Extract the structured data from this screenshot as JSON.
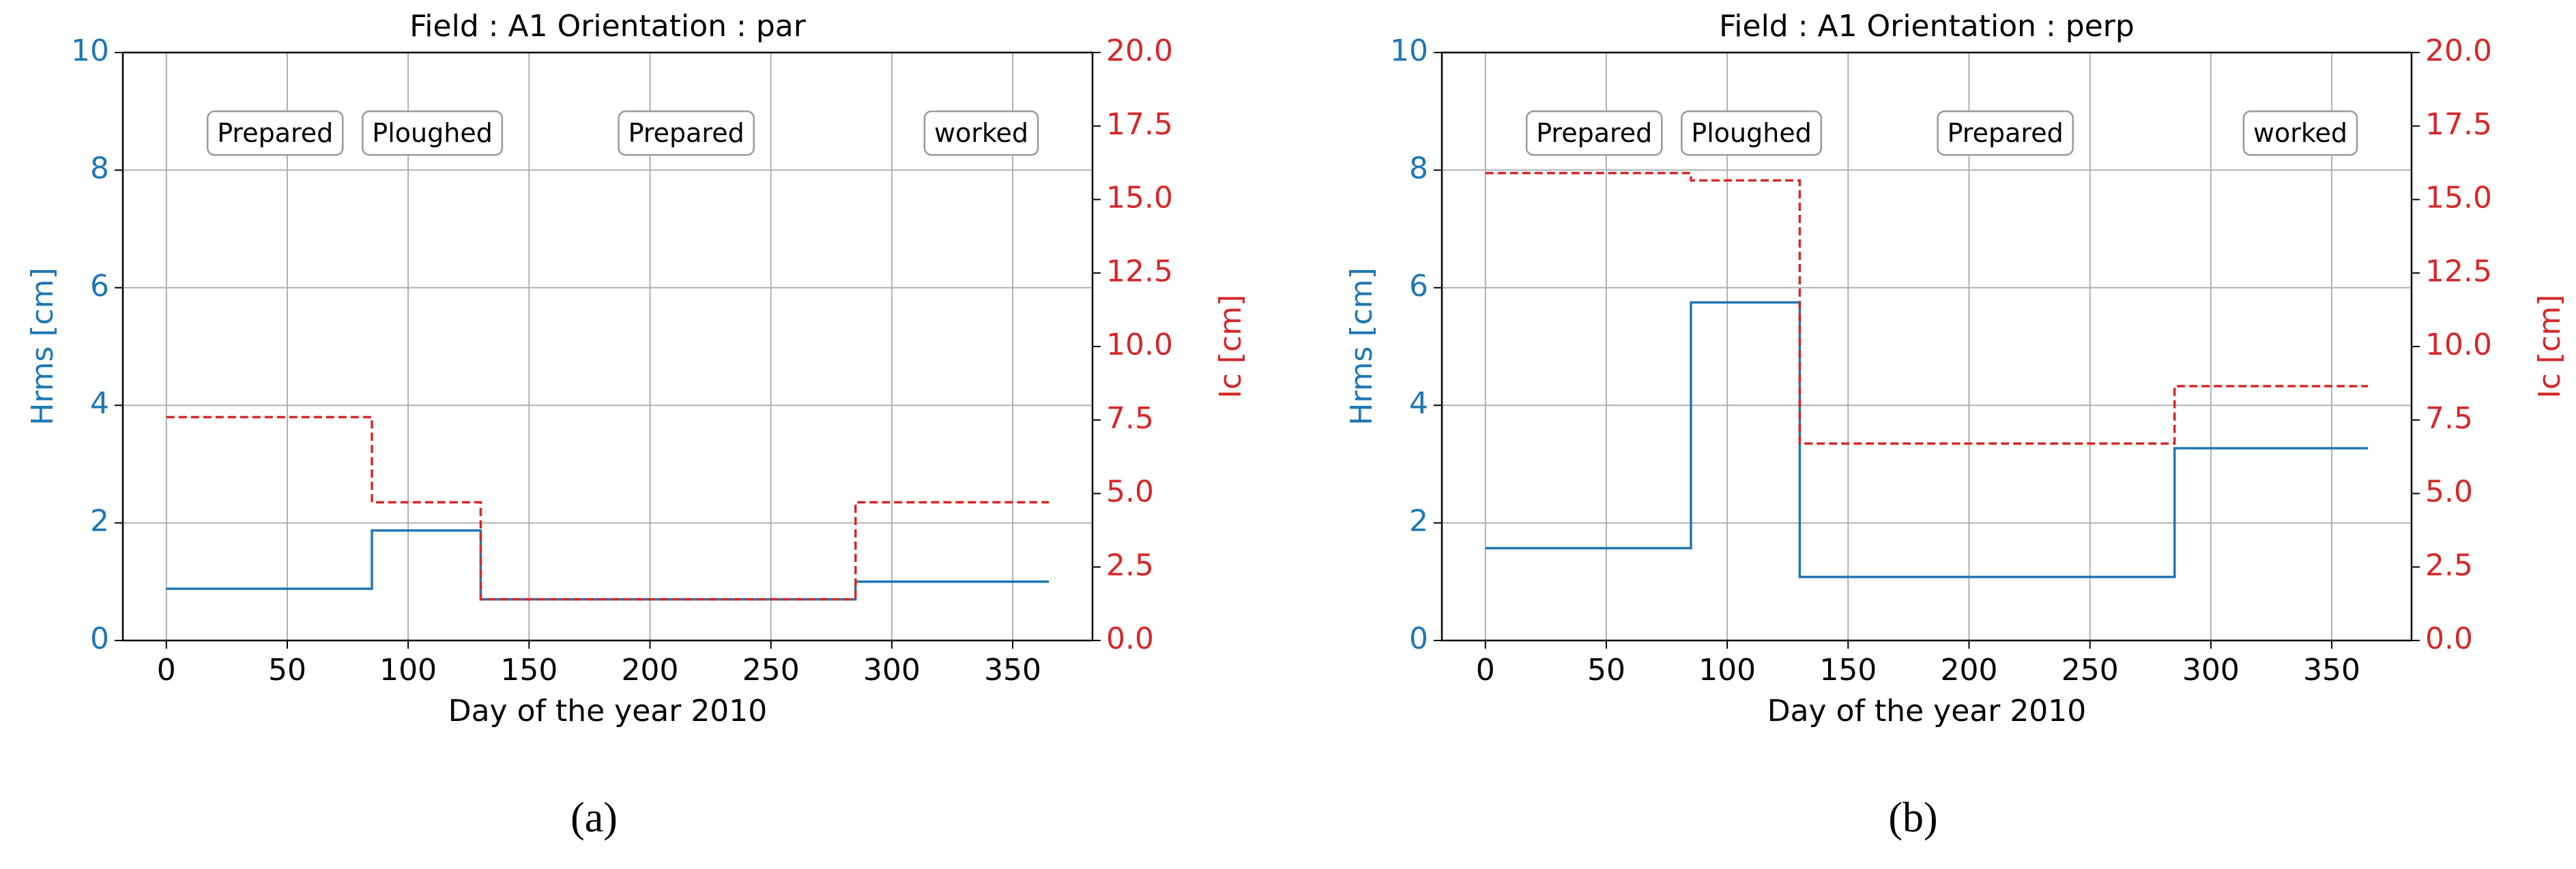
{
  "chart_data": [
    {
      "type": "line",
      "title": "Field : A1 Orientation : par",
      "xlabel": "Day of the year 2010",
      "ylabel": "Hrms [cm]",
      "y2label": "Ic [cm]",
      "caption": "(a)",
      "x": [
        0,
        85,
        85,
        130,
        130,
        285,
        285,
        365
      ],
      "series": [
        {
          "name": "Hrms",
          "color": "#1f77b4",
          "values": [
            0.88,
            0.88,
            1.87,
            1.87,
            0.7,
            0.7,
            1.0,
            1.0
          ]
        },
        {
          "name": "Ic",
          "color": "#d62728",
          "axis": "y2",
          "dashed": true,
          "values": [
            7.6,
            7.6,
            4.7,
            4.7,
            1.4,
            1.4,
            4.7,
            4.7
          ]
        }
      ],
      "annotations": [
        "Prepared",
        "Ploughed",
        "Prepared",
        "worked"
      ],
      "xlim": [
        -18,
        383
      ],
      "xticks": [
        0,
        50,
        100,
        150,
        200,
        250,
        300,
        350
      ],
      "ylim": [
        0,
        10
      ],
      "yticks": [
        0,
        2,
        4,
        6,
        8,
        10
      ],
      "y2lim": [
        0,
        20
      ],
      "y2ticks": [
        {
          "value": 0,
          "label": "0.0"
        },
        {
          "value": 2.5,
          "label": "2.5"
        },
        {
          "value": 5,
          "label": "5.0"
        },
        {
          "value": 7.5,
          "label": "7.5"
        },
        {
          "value": 10,
          "label": "10.0"
        },
        {
          "value": 12.5,
          "label": "12.5"
        },
        {
          "value": 15,
          "label": "15.0"
        },
        {
          "value": 17.5,
          "label": "17.5"
        },
        {
          "value": 20,
          "label": "20.0"
        }
      ],
      "grid": true
    },
    {
      "type": "line",
      "title": "Field : A1 Orientation : perp",
      "xlabel": "Day of the year 2010",
      "ylabel": "Hrms [cm]",
      "y2label": "Ic [cm]",
      "caption": "(b)",
      "x": [
        0,
        85,
        85,
        130,
        130,
        285,
        285,
        365
      ],
      "series": [
        {
          "name": "Hrms",
          "color": "#1f77b4",
          "values": [
            1.57,
            1.57,
            5.75,
            5.75,
            1.08,
            1.08,
            3.27,
            3.27
          ]
        },
        {
          "name": "Ic",
          "color": "#d62728",
          "axis": "y2",
          "dashed": true,
          "values": [
            15.9,
            15.9,
            15.65,
            15.65,
            6.7,
            6.7,
            8.65,
            8.65
          ]
        }
      ],
      "annotations": [
        "Prepared",
        "Ploughed",
        "Prepared",
        "worked"
      ],
      "xlim": [
        -18,
        383
      ],
      "xticks": [
        0,
        50,
        100,
        150,
        200,
        250,
        300,
        350
      ],
      "ylim": [
        0,
        10
      ],
      "yticks": [
        0,
        2,
        4,
        6,
        8,
        10
      ],
      "y2lim": [
        0,
        20
      ],
      "y2ticks": [
        {
          "value": 0,
          "label": "0.0"
        },
        {
          "value": 2.5,
          "label": "2.5"
        },
        {
          "value": 5,
          "label": "5.0"
        },
        {
          "value": 7.5,
          "label": "7.5"
        },
        {
          "value": 10,
          "label": "10.0"
        },
        {
          "value": 12.5,
          "label": "12.5"
        },
        {
          "value": 15,
          "label": "15.0"
        },
        {
          "value": 17.5,
          "label": "17.5"
        },
        {
          "value": 20,
          "label": "20.0"
        }
      ],
      "grid": true
    }
  ]
}
